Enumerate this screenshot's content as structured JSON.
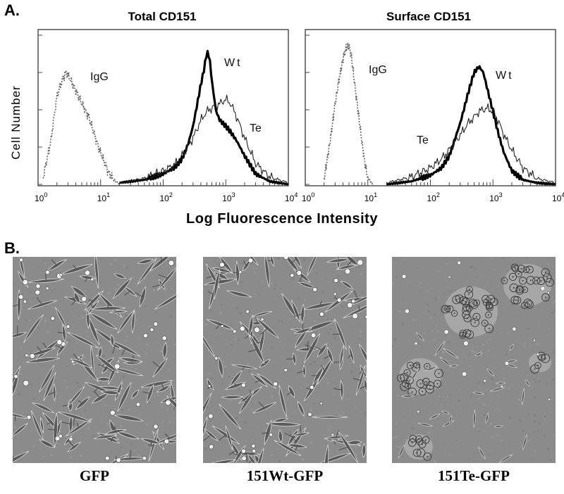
{
  "panel_a_label": "A.",
  "panel_b_label": "B.",
  "ylabel": "Cell Number",
  "xlabel": "Log Fluorescence Intensity",
  "chart_data": [
    {
      "type": "line",
      "title": "Total CD151",
      "x_scale": "log",
      "xlim": [
        1,
        10000
      ],
      "x_ticks": [
        {
          "base": "10",
          "exp": "0"
        },
        {
          "base": "10",
          "exp": "1"
        },
        {
          "base": "10",
          "exp": "2"
        },
        {
          "base": "10",
          "exp": "3"
        },
        {
          "base": "10",
          "exp": "4"
        }
      ],
      "series": [
        {
          "name": "IgG",
          "style": "dotted",
          "x": [
            1.2,
            1.6,
            2.0,
            2.5,
            2.8,
            3.2,
            4.0,
            5.0,
            6.5,
            8.0,
            10,
            13,
            16,
            20
          ],
          "y": [
            0.05,
            0.3,
            0.6,
            0.72,
            0.76,
            0.72,
            0.64,
            0.55,
            0.46,
            0.34,
            0.22,
            0.1,
            0.04,
            0.01
          ]
        },
        {
          "name": "Wt",
          "style": "thick",
          "x": [
            20,
            50,
            100,
            150,
            200,
            250,
            300,
            350,
            400,
            450,
            500,
            550,
            600,
            700,
            800,
            1000,
            1200,
            1500,
            2000,
            3000,
            5000,
            10000
          ],
          "y": [
            0.02,
            0.04,
            0.08,
            0.12,
            0.18,
            0.28,
            0.4,
            0.55,
            0.68,
            0.78,
            0.9,
            0.86,
            0.7,
            0.5,
            0.44,
            0.4,
            0.36,
            0.3,
            0.2,
            0.08,
            0.03,
            0.01
          ]
        },
        {
          "name": "Te",
          "style": "thin",
          "x": [
            20,
            50,
            100,
            150,
            200,
            300,
            400,
            500,
            600,
            800,
            1000,
            1200,
            1500,
            2000,
            3000,
            5000,
            10000
          ],
          "y": [
            0.02,
            0.05,
            0.1,
            0.14,
            0.2,
            0.32,
            0.44,
            0.5,
            0.52,
            0.55,
            0.58,
            0.55,
            0.46,
            0.32,
            0.15,
            0.06,
            0.02
          ]
        }
      ]
    },
    {
      "type": "line",
      "title": "Surface CD151",
      "x_scale": "log",
      "xlim": [
        1,
        10000
      ],
      "x_ticks": [
        {
          "base": "10",
          "exp": "0"
        },
        {
          "base": "10",
          "exp": "1"
        },
        {
          "base": "10",
          "exp": "2"
        },
        {
          "base": "10",
          "exp": "3"
        },
        {
          "base": "10",
          "exp": "4"
        }
      ],
      "series": [
        {
          "name": "IgG",
          "style": "dotted",
          "x": [
            2.0,
            2.5,
            3.0,
            3.5,
            4.0,
            4.5,
            5.0,
            5.5,
            6.0,
            7.0,
            8.0,
            9.0,
            10,
            12
          ],
          "y": [
            0.05,
            0.3,
            0.55,
            0.72,
            0.85,
            0.92,
            0.94,
            0.86,
            0.72,
            0.5,
            0.3,
            0.15,
            0.05,
            0.01
          ]
        },
        {
          "name": "Wt",
          "style": "thick",
          "x": [
            20,
            50,
            100,
            150,
            200,
            300,
            400,
            500,
            600,
            700,
            800,
            1000,
            1200,
            1500,
            2000,
            3000,
            5000,
            10000
          ],
          "y": [
            0.01,
            0.03,
            0.07,
            0.12,
            0.2,
            0.42,
            0.62,
            0.76,
            0.8,
            0.76,
            0.66,
            0.5,
            0.36,
            0.22,
            0.1,
            0.04,
            0.02,
            0.01
          ]
        },
        {
          "name": "Te",
          "style": "thin",
          "x": [
            20,
            50,
            100,
            150,
            200,
            300,
            400,
            500,
            600,
            800,
            1000,
            1200,
            1500,
            2000,
            3000,
            5000,
            10000
          ],
          "y": [
            0.02,
            0.06,
            0.12,
            0.18,
            0.24,
            0.34,
            0.42,
            0.46,
            0.5,
            0.52,
            0.5,
            0.44,
            0.34,
            0.24,
            0.12,
            0.05,
            0.02
          ]
        }
      ]
    }
  ],
  "micrographs": [
    {
      "caption": "GFP",
      "morphology": "scattered"
    },
    {
      "caption": "151Wt-GFP",
      "morphology": "scattered"
    },
    {
      "caption": "151Te-GFP",
      "morphology": "clustered"
    }
  ]
}
